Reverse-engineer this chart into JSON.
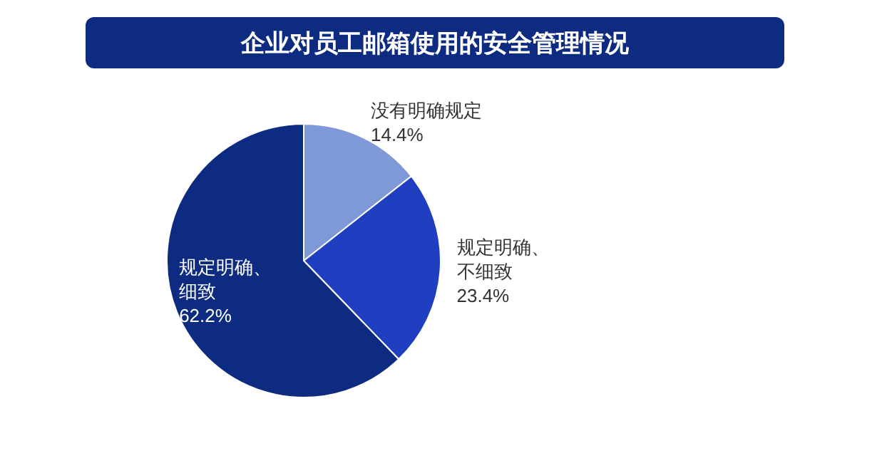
{
  "chart_data": {
    "type": "pie",
    "title": "企业对员工邮箱使用的安全管理情况",
    "categories": [
      "没有明确规定",
      "规定明确、不细致",
      "规定明确、细致"
    ],
    "values": [
      14.4,
      23.4,
      62.2
    ],
    "value_labels": [
      "14.4%",
      "23.4%",
      "62.2%"
    ],
    "colors": [
      "#7f98d8",
      "#1f3fc0",
      "#0d2b80"
    ]
  }
}
